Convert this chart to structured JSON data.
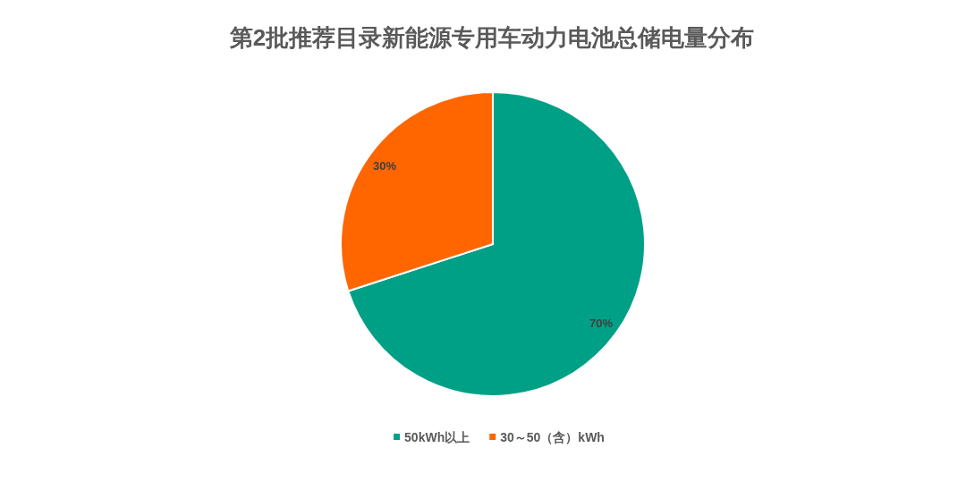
{
  "chart_data": {
    "type": "pie",
    "title": "第2批推荐目录新能源专用车动力电池总储电量分布",
    "categories": [
      "50kWh以上",
      "30～50（含）kWh"
    ],
    "values": [
      70,
      30
    ],
    "colors": [
      "#00a086",
      "#ff6600"
    ],
    "value_labels": [
      "70%",
      "30%"
    ],
    "legend": "bottom"
  }
}
